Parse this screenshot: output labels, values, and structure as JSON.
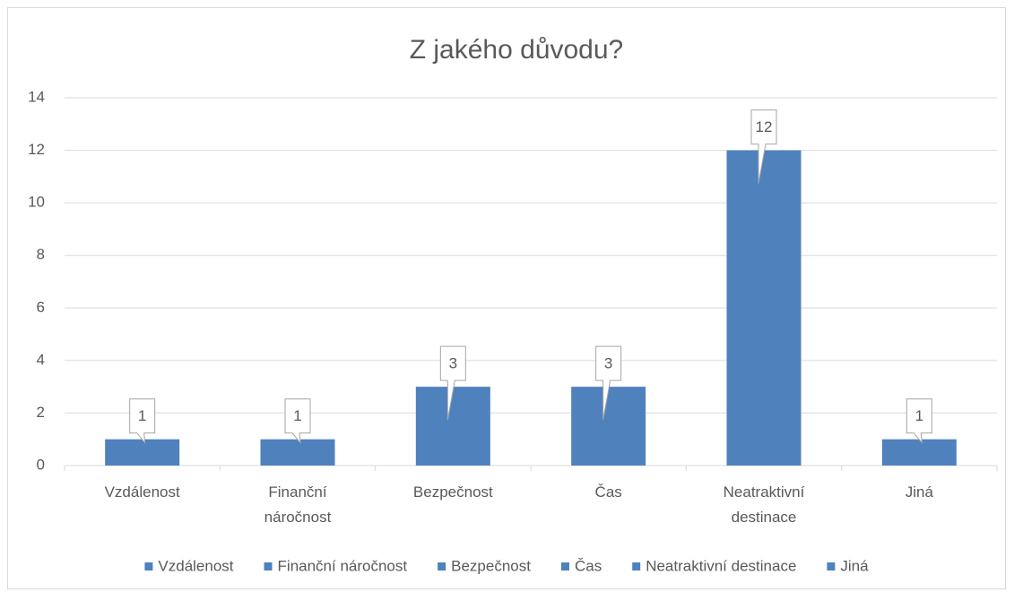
{
  "chart_data": {
    "type": "bar",
    "title": "Z jakého důvodu?",
    "categories": [
      "Vzdálenost",
      "Finanční náročnost",
      "Bezpečnost",
      "Čas",
      "Neatraktivní destinace",
      "Jiná"
    ],
    "values": [
      1,
      1,
      3,
      3,
      12,
      1
    ],
    "color": "#4f81bd",
    "ylim": [
      0,
      14
    ],
    "yticks": [
      0,
      2,
      4,
      6,
      8,
      10,
      12,
      14
    ],
    "grid": true,
    "legend": "bottom"
  }
}
